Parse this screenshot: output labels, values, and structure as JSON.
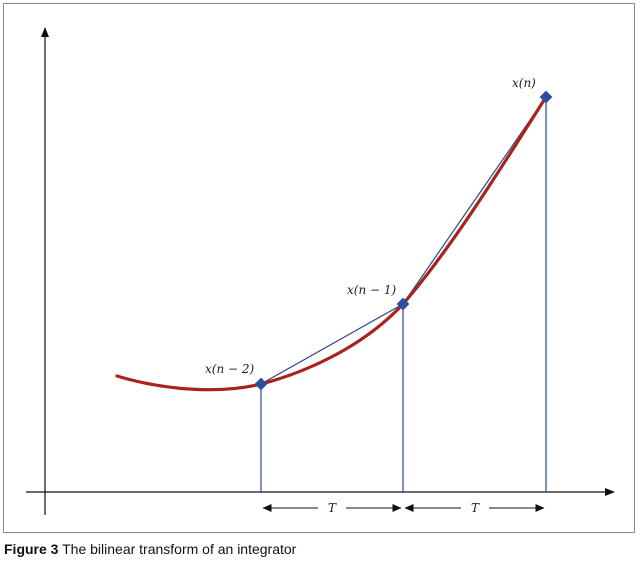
{
  "figure": {
    "points": {
      "p0": "x(n − 2)",
      "p1": "x(n − 1)",
      "p2": "x(n)"
    },
    "intervals": {
      "first": "T",
      "second": "T"
    },
    "colors": {
      "curve": "#a8231c",
      "lines": "#2a4a8a",
      "markers": "#2b4ea0",
      "axes": "#111111"
    }
  },
  "caption": {
    "number": "Figure 3",
    "text": "The bilinear transform of an integrator"
  }
}
